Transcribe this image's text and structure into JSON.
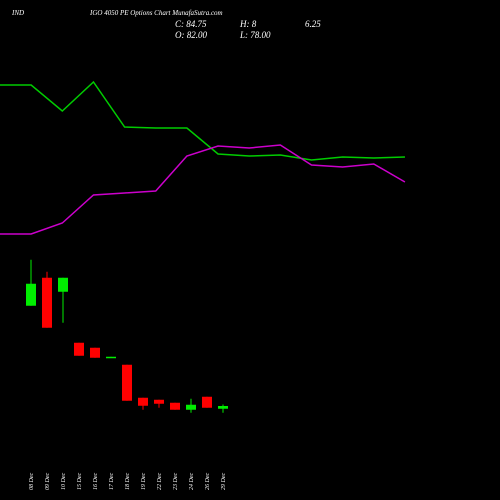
{
  "chart_data": [
    {
      "type": "candlestick",
      "title": "IND",
      "subtitle": "IGO 4050  PE Options  Chart MunafaSutra.com",
      "annotations": [
        "C: 84.75",
        "O: 82.00",
        "H: 8",
        "6.25",
        "L: 78.00"
      ],
      "categories": [
        "08 Dec",
        "09 Dec",
        "10 Dec",
        "15 Dec",
        "16 Dec",
        "17 Dec",
        "18 Dec",
        "19 Dec",
        "22 Dec",
        "23 Dec",
        "24 Dec",
        "26 Dec",
        "29 Dec"
      ],
      "open": [
        185,
        213,
        199,
        148,
        143,
        133,
        126,
        93,
        91,
        88,
        81,
        94,
        82
      ],
      "high": [
        231,
        219,
        213,
        148,
        143,
        134,
        126,
        93,
        91,
        88,
        92,
        94,
        86.25
      ],
      "low": [
        185,
        163,
        168,
        135,
        133,
        133,
        90,
        81,
        83,
        81,
        78,
        83,
        78
      ],
      "close": [
        207,
        163,
        213,
        135,
        133,
        134,
        90,
        85,
        87,
        81,
        86,
        83,
        84.75
      ],
      "up_color": "#00ee00",
      "down_color": "#ff0000",
      "ylim": [
        70,
        240
      ]
    },
    {
      "type": "line",
      "series": [
        {
          "color": "#00cc00",
          "values": [
            215,
            215,
            189,
            218,
            173,
            172,
            172,
            146,
            144,
            145,
            140,
            143,
            142,
            143
          ]
        },
        {
          "color": "#cc00cc",
          "values": [
            66,
            66,
            77,
            105,
            107,
            109,
            144,
            154,
            152,
            155,
            135,
            133,
            136,
            118
          ]
        }
      ],
      "ylim": [
        0,
        250
      ]
    }
  ]
}
